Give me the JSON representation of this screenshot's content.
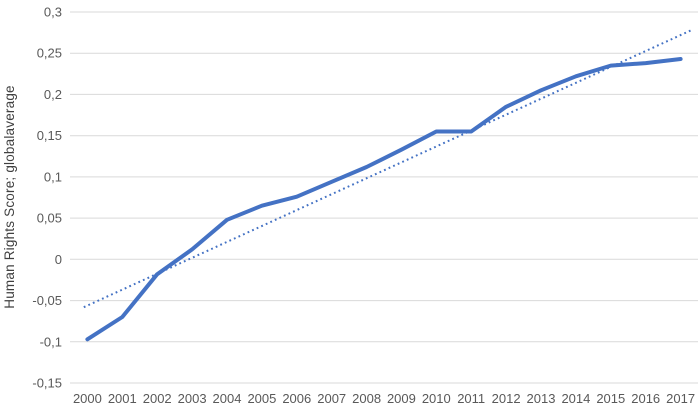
{
  "colors": {
    "series_blue": "#4472C4",
    "trendline_blue": "#4472C4",
    "gridline": "#D9D9D9",
    "tick_label": "#595959",
    "axis_title": "#404040",
    "background": "#FFFFFF"
  },
  "chart_data": {
    "type": "line",
    "title": "",
    "xlabel": "",
    "ylabel": "Human Rights Score; globalaverage",
    "legend": "none",
    "grid": "horizontal-only",
    "decimal_separator": ",",
    "x": [
      "2000",
      "2001",
      "2002",
      "2003",
      "2004",
      "2005",
      "2006",
      "2007",
      "2008",
      "2009",
      "2010",
      "2011",
      "2012",
      "2013",
      "2014",
      "2015",
      "2016",
      "2017"
    ],
    "ylim": [
      -0.15,
      0.3
    ],
    "y_tick_step": 0.05,
    "y_tick_labels": [
      "0,3",
      "0,25",
      "0,2",
      "0,15",
      "0,1",
      "0,05",
      "0",
      "-0,05",
      "-0,1",
      "-0,15"
    ],
    "series": [
      {
        "name": "human-rights-score-global-average",
        "style": "solid",
        "color": "#4472C4",
        "stroke_width": 4,
        "values": [
          -0.097,
          -0.07,
          -0.018,
          0.012,
          0.048,
          0.065,
          0.076,
          0.094,
          0.112,
          0.133,
          0.155,
          0.155,
          0.185,
          0.205,
          0.222,
          0.235,
          0.238,
          0.243
        ]
      }
    ],
    "trendline": {
      "type": "linear",
      "style": "dotted",
      "color": "#4472C4",
      "stroke_width": 2,
      "start_value": -0.056,
      "end_value": 0.272
    }
  }
}
